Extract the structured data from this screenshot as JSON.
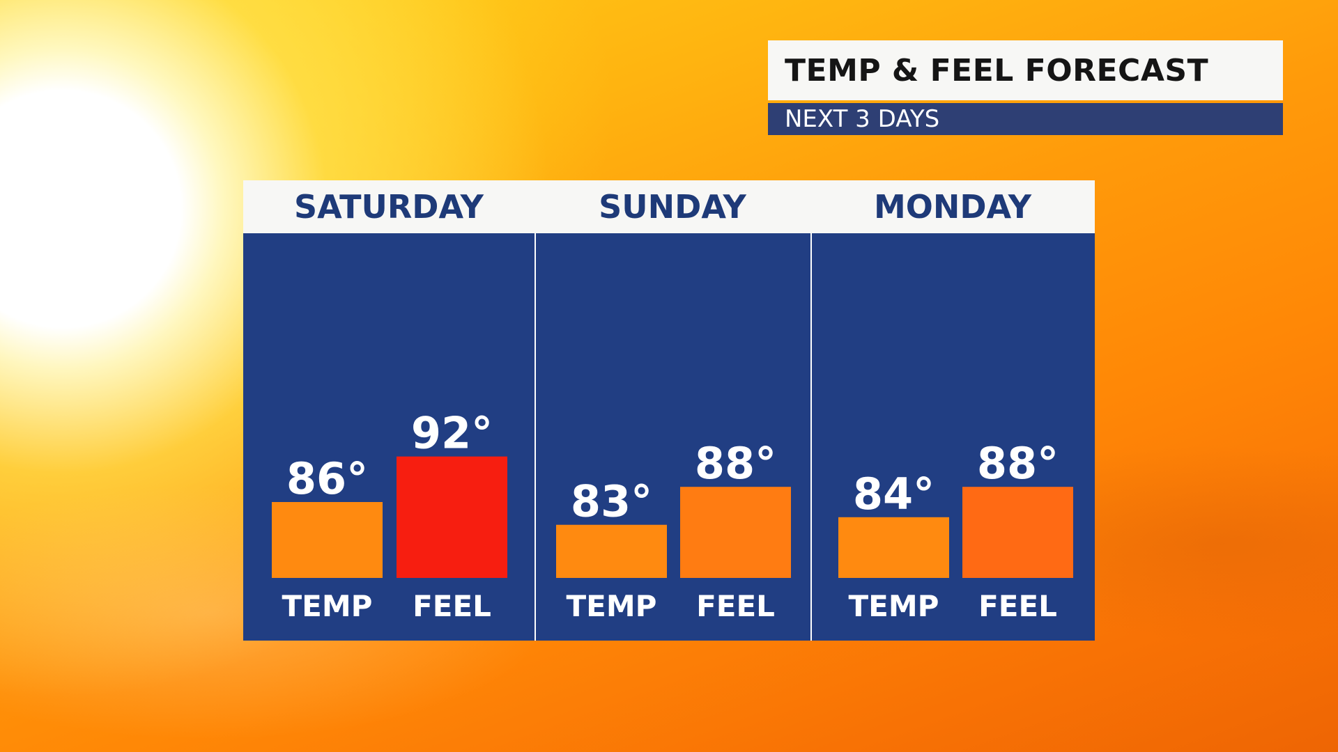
{
  "header": {
    "title": "TEMP & FEEL FORECAST",
    "subtitle": "NEXT 3 DAYS"
  },
  "colors": {
    "panel_bg": "#213e83",
    "header_bg": "#f7f7f5",
    "day_text": "#1e3a78",
    "subtitle_bg": "#2e3f74",
    "temp_bar": "#ff8a10",
    "feel_hot": "#f71e10",
    "feel_warm": "#ff7c12",
    "feel_warm2": "#ff6a14"
  },
  "chart_data": {
    "type": "bar",
    "categories": [
      "SATURDAY",
      "SUNDAY",
      "MONDAY"
    ],
    "bar_labels": [
      "TEMP",
      "FEEL"
    ],
    "unit": "°",
    "series": [
      {
        "name": "TEMP",
        "values": [
          86,
          83,
          84
        ]
      },
      {
        "name": "FEEL",
        "values": [
          92,
          88,
          88
        ]
      }
    ],
    "value_labels": {
      "TEMP": [
        "86°",
        "83°",
        "84°"
      ],
      "FEEL": [
        "92°",
        "88°",
        "88°"
      ]
    },
    "bar_colors": {
      "TEMP": [
        "#ff8a10",
        "#ff8a10",
        "#ff8a10"
      ],
      "FEEL": [
        "#f71e10",
        "#ff7c12",
        "#ff6a14"
      ]
    },
    "ylim": [
      76,
      97
    ],
    "grid": false,
    "legend": "none"
  }
}
